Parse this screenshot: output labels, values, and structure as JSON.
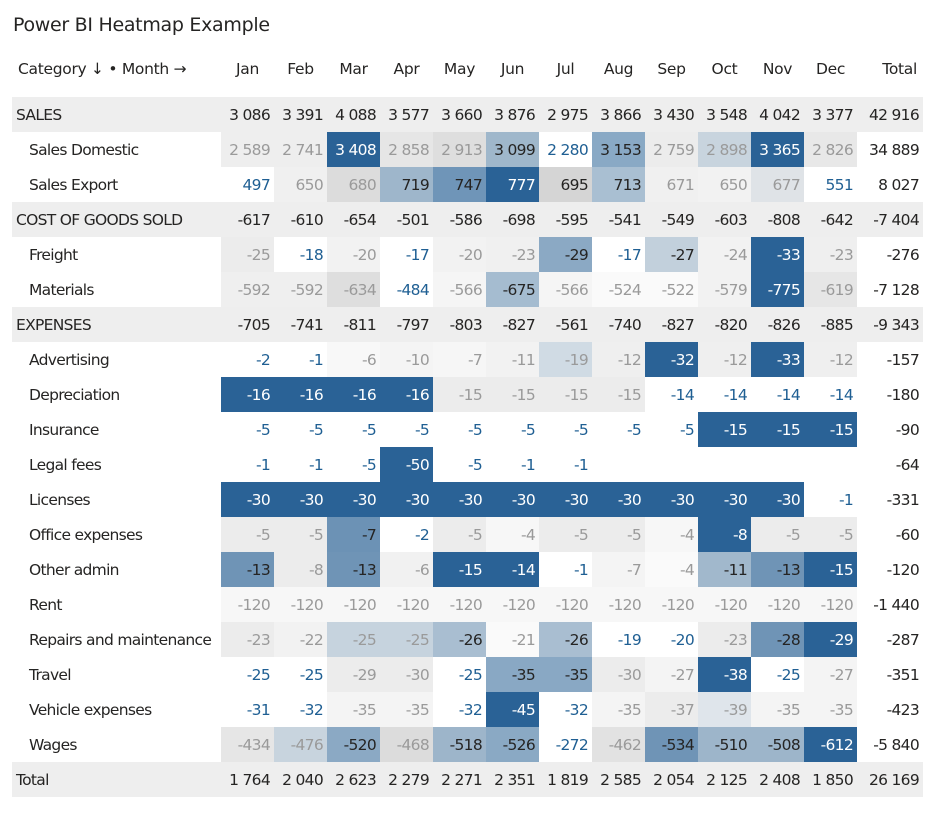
{
  "title": "Power BI Heatmap Example",
  "header": {
    "category_label": "Category ↓ • Month →",
    "months": [
      "Jan",
      "Feb",
      "Mar",
      "Apr",
      "May",
      "Jun",
      "Jul",
      "Aug",
      "Sep",
      "Oct",
      "Nov",
      "Dec"
    ],
    "total_label": "Total"
  },
  "colors": {
    "group_bg": "#eeeeee",
    "dark_blue": "#2a6296",
    "text_blue": "#1f5f93",
    "faded_text": "#9a9a9a"
  },
  "rows": [
    {
      "type": "group",
      "label": "SALES",
      "values": [
        "3 086",
        "3 391",
        "4 088",
        "3 577",
        "3 660",
        "3 876",
        "2 975",
        "3 866",
        "3 430",
        "3 548",
        "4 042",
        "3 377"
      ],
      "total": "42 916"
    },
    {
      "type": "child",
      "label": "Sales Domestic",
      "values": [
        "2 589",
        "2 741",
        "3 408",
        "2 858",
        "2 913",
        "3 099",
        "2 280",
        "3 153",
        "2 759",
        "2 898",
        "3 365",
        "2 826"
      ],
      "total": "34 889",
      "cells": [
        [
          "#eeeeee",
          "faded"
        ],
        [
          "#eeeeee",
          "faded"
        ],
        [
          "#2a6296",
          "dark"
        ],
        [
          "#e6e6e6",
          "faded"
        ],
        [
          "#dedede",
          "faded"
        ],
        [
          "#9fb7cb",
          "cell"
        ],
        [
          "#ffffff",
          "blue"
        ],
        [
          "#89a9c5",
          "cell"
        ],
        [
          "#ececec",
          "faded"
        ],
        [
          "#c8d4de",
          "faded"
        ],
        [
          "#2a6296",
          "dark"
        ],
        [
          "#e8e8e8",
          "faded"
        ]
      ]
    },
    {
      "type": "child",
      "label": "Sales Export",
      "values": [
        "497",
        "650",
        "680",
        "719",
        "747",
        "777",
        "695",
        "713",
        "671",
        "650",
        "677",
        "551"
      ],
      "total": "8 027",
      "cells": [
        [
          "#ffffff",
          "blue"
        ],
        [
          "#f0f0f0",
          "faded"
        ],
        [
          "#dcdcdc",
          "faded"
        ],
        [
          "#9eb6cb",
          "cell"
        ],
        [
          "#6f95b8",
          "cell"
        ],
        [
          "#2a6296",
          "dark"
        ],
        [
          "#d5d5d5",
          "cell"
        ],
        [
          "#a9bfd2",
          "cell"
        ],
        [
          "#f0f0f0",
          "faded"
        ],
        [
          "#f2f2f2",
          "faded"
        ],
        [
          "#dfe3e7",
          "faded"
        ],
        [
          "#ffffff",
          "blue"
        ]
      ]
    },
    {
      "type": "group",
      "label": "COST OF GOODS SOLD",
      "values": [
        "-617",
        "-610",
        "-654",
        "-501",
        "-586",
        "-698",
        "-595",
        "-541",
        "-549",
        "-603",
        "-808",
        "-642"
      ],
      "total": "-7 404"
    },
    {
      "type": "child",
      "label": "Freight",
      "values": [
        "-25",
        "-18",
        "-20",
        "-17",
        "-20",
        "-23",
        "-29",
        "-17",
        "-27",
        "-24",
        "-33",
        "-23"
      ],
      "total": "-276",
      "cells": [
        [
          "#ececec",
          "faded"
        ],
        [
          "#ffffff",
          "blue"
        ],
        [
          "#f2f2f2",
          "faded"
        ],
        [
          "#ffffff",
          "blue"
        ],
        [
          "#f2f2f2",
          "faded"
        ],
        [
          "#f0f0f0",
          "faded"
        ],
        [
          "#8ba9c4",
          "cell"
        ],
        [
          "#ffffff",
          "blue"
        ],
        [
          "#c2d0dc",
          "cell"
        ],
        [
          "#f2f2f2",
          "faded"
        ],
        [
          "#2a6296",
          "dark"
        ],
        [
          "#efefef",
          "faded"
        ]
      ]
    },
    {
      "type": "child",
      "label": "Materials",
      "values": [
        "-592",
        "-592",
        "-634",
        "-484",
        "-566",
        "-675",
        "-566",
        "-524",
        "-522",
        "-579",
        "-775",
        "-619"
      ],
      "total": "-7 128",
      "cells": [
        [
          "#efefef",
          "faded"
        ],
        [
          "#efefef",
          "faded"
        ],
        [
          "#dedede",
          "faded"
        ],
        [
          "#ffffff",
          "blue"
        ],
        [
          "#f5f5f5",
          "faded"
        ],
        [
          "#a5bcd0",
          "cell"
        ],
        [
          "#f5f5f5",
          "faded"
        ],
        [
          "#fafafa",
          "faded"
        ],
        [
          "#fafafa",
          "faded"
        ],
        [
          "#f2f2f2",
          "faded"
        ],
        [
          "#2a6296",
          "dark"
        ],
        [
          "#e6e6e6",
          "faded"
        ]
      ]
    },
    {
      "type": "group",
      "label": "EXPENSES",
      "values": [
        "-705",
        "-741",
        "-811",
        "-797",
        "-803",
        "-827",
        "-561",
        "-740",
        "-827",
        "-820",
        "-826",
        "-885"
      ],
      "total": "-9 343"
    },
    {
      "type": "child",
      "label": "Advertising",
      "values": [
        "-2",
        "-1",
        "-6",
        "-10",
        "-7",
        "-11",
        "-19",
        "-12",
        "-32",
        "-12",
        "-33",
        "-12"
      ],
      "total": "-157",
      "cells": [
        [
          "#ffffff",
          "blue"
        ],
        [
          "#ffffff",
          "blue"
        ],
        [
          "#f8f8f8",
          "faded"
        ],
        [
          "#f4f4f4",
          "faded"
        ],
        [
          "#f6f6f6",
          "faded"
        ],
        [
          "#f2f2f2",
          "faded"
        ],
        [
          "#d0dbe4",
          "faded"
        ],
        [
          "#efefef",
          "faded"
        ],
        [
          "#2a6296",
          "dark"
        ],
        [
          "#efefef",
          "faded"
        ],
        [
          "#2a6296",
          "dark"
        ],
        [
          "#efefef",
          "faded"
        ]
      ]
    },
    {
      "type": "child",
      "label": "Depreciation",
      "values": [
        "-16",
        "-16",
        "-16",
        "-16",
        "-15",
        "-15",
        "-15",
        "-15",
        "-14",
        "-14",
        "-14",
        "-14"
      ],
      "total": "-180",
      "cells": [
        [
          "#2a6296",
          "dark"
        ],
        [
          "#2a6296",
          "dark"
        ],
        [
          "#2a6296",
          "dark"
        ],
        [
          "#2a6296",
          "dark"
        ],
        [
          "#ececec",
          "faded"
        ],
        [
          "#ececec",
          "faded"
        ],
        [
          "#ececec",
          "faded"
        ],
        [
          "#ececec",
          "faded"
        ],
        [
          "#ffffff",
          "blue"
        ],
        [
          "#ffffff",
          "blue"
        ],
        [
          "#ffffff",
          "blue"
        ],
        [
          "#ffffff",
          "blue"
        ]
      ]
    },
    {
      "type": "child",
      "label": "Insurance",
      "values": [
        "-5",
        "-5",
        "-5",
        "-5",
        "-5",
        "-5",
        "-5",
        "-5",
        "-5",
        "-15",
        "-15",
        "-15"
      ],
      "total": "-90",
      "cells": [
        [
          "#ffffff",
          "blue"
        ],
        [
          "#ffffff",
          "blue"
        ],
        [
          "#ffffff",
          "blue"
        ],
        [
          "#ffffff",
          "blue"
        ],
        [
          "#ffffff",
          "blue"
        ],
        [
          "#ffffff",
          "blue"
        ],
        [
          "#ffffff",
          "blue"
        ],
        [
          "#ffffff",
          "blue"
        ],
        [
          "#ffffff",
          "blue"
        ],
        [
          "#2a6296",
          "dark"
        ],
        [
          "#2a6296",
          "dark"
        ],
        [
          "#2a6296",
          "dark"
        ]
      ]
    },
    {
      "type": "child",
      "label": "Legal fees",
      "values": [
        "-1",
        "-1",
        "-5",
        "-50",
        "-5",
        "-1",
        "-1",
        "",
        "",
        "",
        "",
        ""
      ],
      "total": "-64",
      "cells": [
        [
          "#ffffff",
          "blue"
        ],
        [
          "#ffffff",
          "blue"
        ],
        [
          "#ffffff",
          "blue"
        ],
        [
          "#2a6296",
          "dark"
        ],
        [
          "#ffffff",
          "blue"
        ],
        [
          "#ffffff",
          "blue"
        ],
        [
          "#ffffff",
          "blue"
        ],
        [
          "#ffffff",
          "blue"
        ],
        [
          "#ffffff",
          "blue"
        ],
        [
          "#ffffff",
          "blue"
        ],
        [
          "#ffffff",
          "blue"
        ],
        [
          "#ffffff",
          "blue"
        ]
      ]
    },
    {
      "type": "child",
      "label": "Licenses",
      "values": [
        "-30",
        "-30",
        "-30",
        "-30",
        "-30",
        "-30",
        "-30",
        "-30",
        "-30",
        "-30",
        "-30",
        "-1"
      ],
      "total": "-331",
      "cells": [
        [
          "#2a6296",
          "dark"
        ],
        [
          "#2a6296",
          "dark"
        ],
        [
          "#2a6296",
          "dark"
        ],
        [
          "#2a6296",
          "dark"
        ],
        [
          "#2a6296",
          "dark"
        ],
        [
          "#2a6296",
          "dark"
        ],
        [
          "#2a6296",
          "dark"
        ],
        [
          "#2a6296",
          "dark"
        ],
        [
          "#2a6296",
          "dark"
        ],
        [
          "#2a6296",
          "dark"
        ],
        [
          "#2a6296",
          "dark"
        ],
        [
          "#ffffff",
          "blue"
        ]
      ]
    },
    {
      "type": "child",
      "label": "Office expenses",
      "values": [
        "-5",
        "-5",
        "-7",
        "-2",
        "-5",
        "-4",
        "-5",
        "-5",
        "-4",
        "-8",
        "-5",
        "-5"
      ],
      "total": "-60",
      "cells": [
        [
          "#ececec",
          "faded"
        ],
        [
          "#ececec",
          "faded"
        ],
        [
          "#6c92b5",
          "cell"
        ],
        [
          "#ffffff",
          "blue"
        ],
        [
          "#ececec",
          "faded"
        ],
        [
          "#f7f7f7",
          "faded"
        ],
        [
          "#ececec",
          "faded"
        ],
        [
          "#ececec",
          "faded"
        ],
        [
          "#f7f7f7",
          "faded"
        ],
        [
          "#2a6296",
          "dark"
        ],
        [
          "#ececec",
          "faded"
        ],
        [
          "#ececec",
          "faded"
        ]
      ]
    },
    {
      "type": "child",
      "label": "Other admin",
      "values": [
        "-13",
        "-8",
        "-13",
        "-6",
        "-15",
        "-14",
        "-1",
        "-7",
        "-4",
        "-11",
        "-13",
        "-15"
      ],
      "total": "-120",
      "cells": [
        [
          "#6f94b6",
          "cell"
        ],
        [
          "#ececec",
          "faded"
        ],
        [
          "#6f94b6",
          "cell"
        ],
        [
          "#f1f1f1",
          "faded"
        ],
        [
          "#2a6296",
          "dark"
        ],
        [
          "#2a6296",
          "dark"
        ],
        [
          "#ffffff",
          "blue"
        ],
        [
          "#f4f4f4",
          "faded"
        ],
        [
          "#fafafa",
          "faded"
        ],
        [
          "#a1b8cc",
          "cell"
        ],
        [
          "#6f94b6",
          "cell"
        ],
        [
          "#2a6296",
          "dark"
        ]
      ]
    },
    {
      "type": "child",
      "label": "Rent",
      "values": [
        "-120",
        "-120",
        "-120",
        "-120",
        "-120",
        "-120",
        "-120",
        "-120",
        "-120",
        "-120",
        "-120",
        "-120"
      ],
      "total": "-1 440",
      "cells": [
        [
          "#f7f7f7",
          "faded"
        ],
        [
          "#f7f7f7",
          "faded"
        ],
        [
          "#f7f7f7",
          "faded"
        ],
        [
          "#f7f7f7",
          "faded"
        ],
        [
          "#f7f7f7",
          "faded"
        ],
        [
          "#f7f7f7",
          "faded"
        ],
        [
          "#f7f7f7",
          "faded"
        ],
        [
          "#f7f7f7",
          "faded"
        ],
        [
          "#f7f7f7",
          "faded"
        ],
        [
          "#f7f7f7",
          "faded"
        ],
        [
          "#f7f7f7",
          "faded"
        ],
        [
          "#f7f7f7",
          "faded"
        ]
      ]
    },
    {
      "type": "child",
      "label": "Repairs and maintenance",
      "values": [
        "-23",
        "-22",
        "-25",
        "-25",
        "-26",
        "-21",
        "-26",
        "-19",
        "-20",
        "-23",
        "-28",
        "-29"
      ],
      "total": "-287",
      "cells": [
        [
          "#ececec",
          "faded"
        ],
        [
          "#f2f2f2",
          "faded"
        ],
        [
          "#c6d3de",
          "faded"
        ],
        [
          "#c6d3de",
          "faded"
        ],
        [
          "#a9bed1",
          "cell"
        ],
        [
          "#fafafa",
          "faded"
        ],
        [
          "#a9bed1",
          "cell"
        ],
        [
          "#ffffff",
          "blue"
        ],
        [
          "#ffffff",
          "blue"
        ],
        [
          "#ececec",
          "faded"
        ],
        [
          "#6f94b6",
          "cell"
        ],
        [
          "#2a6296",
          "dark"
        ]
      ]
    },
    {
      "type": "child",
      "label": "Travel",
      "values": [
        "-25",
        "-25",
        "-29",
        "-30",
        "-25",
        "-35",
        "-35",
        "-30",
        "-27",
        "-38",
        "-25",
        "-27"
      ],
      "total": "-351",
      "cells": [
        [
          "#ffffff",
          "blue"
        ],
        [
          "#ffffff",
          "blue"
        ],
        [
          "#ececec",
          "faded"
        ],
        [
          "#ececec",
          "faded"
        ],
        [
          "#ffffff",
          "blue"
        ],
        [
          "#89a8c4",
          "cell"
        ],
        [
          "#89a8c4",
          "cell"
        ],
        [
          "#ececec",
          "faded"
        ],
        [
          "#f4f4f4",
          "faded"
        ],
        [
          "#2a6296",
          "dark"
        ],
        [
          "#ffffff",
          "blue"
        ],
        [
          "#f4f4f4",
          "faded"
        ]
      ]
    },
    {
      "type": "child",
      "label": "Vehicle expenses",
      "values": [
        "-31",
        "-32",
        "-35",
        "-35",
        "-32",
        "-45",
        "-32",
        "-35",
        "-37",
        "-39",
        "-35",
        "-35"
      ],
      "total": "-423",
      "cells": [
        [
          "#ffffff",
          "blue"
        ],
        [
          "#ffffff",
          "blue"
        ],
        [
          "#f4f4f4",
          "faded"
        ],
        [
          "#f4f4f4",
          "faded"
        ],
        [
          "#ffffff",
          "blue"
        ],
        [
          "#2a6296",
          "dark"
        ],
        [
          "#ffffff",
          "blue"
        ],
        [
          "#f4f4f4",
          "faded"
        ],
        [
          "#ececec",
          "faded"
        ],
        [
          "#dfe5eb",
          "faded"
        ],
        [
          "#f4f4f4",
          "faded"
        ],
        [
          "#f4f4f4",
          "faded"
        ]
      ]
    },
    {
      "type": "child",
      "label": "Wages",
      "values": [
        "-434",
        "-476",
        "-520",
        "-468",
        "-518",
        "-526",
        "-272",
        "-462",
        "-534",
        "-510",
        "-508",
        "-612"
      ],
      "total": "-5 840",
      "cells": [
        [
          "#e6e6e6",
          "faded"
        ],
        [
          "#c8d4de",
          "faded"
        ],
        [
          "#8ba9c4",
          "cell"
        ],
        [
          "#dcdcdc",
          "faded"
        ],
        [
          "#9db5ca",
          "cell"
        ],
        [
          "#8aa9c4",
          "cell"
        ],
        [
          "#ffffff",
          "blue"
        ],
        [
          "#e2e2e2",
          "faded"
        ],
        [
          "#6f94b6",
          "cell"
        ],
        [
          "#9db5ca",
          "cell"
        ],
        [
          "#9db5ca",
          "cell"
        ],
        [
          "#2a6296",
          "dark"
        ]
      ]
    },
    {
      "type": "grand",
      "label": "Total",
      "values": [
        "1 764",
        "2 040",
        "2 623",
        "2 279",
        "2 271",
        "2 351",
        "1 819",
        "2 585",
        "2 054",
        "2 125",
        "2 408",
        "1 850"
      ],
      "total": "26 169"
    }
  ]
}
